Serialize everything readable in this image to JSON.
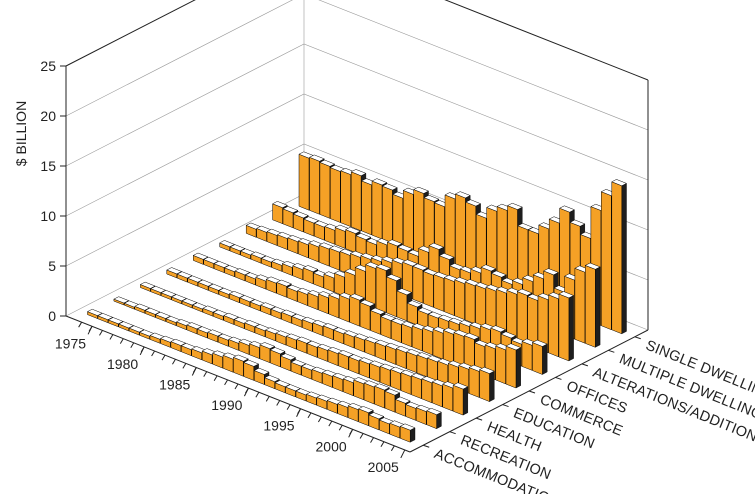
{
  "chart_data": {
    "type": "bar",
    "variant": "3d-bar",
    "title": "",
    "xlabel": "",
    "ylabel": "$ BILLION",
    "ylim": [
      0,
      25
    ],
    "y_ticks": [
      0,
      5,
      10,
      15,
      20,
      25
    ],
    "x_ticks": [
      1975,
      1980,
      1985,
      1990,
      1995,
      2000,
      2005
    ],
    "grid": true,
    "legend": "none",
    "colors": {
      "bar_front": "#f5a126",
      "bar_side": "#1e1e1e",
      "bar_top": "#ffffff"
    },
    "years": [
      1974,
      1975,
      1976,
      1977,
      1978,
      1979,
      1980,
      1981,
      1982,
      1983,
      1984,
      1985,
      1986,
      1987,
      1988,
      1989,
      1990,
      1991,
      1992,
      1993,
      1994,
      1995,
      1996,
      1997,
      1998,
      1999,
      2000,
      2001,
      2002,
      2003,
      2004
    ],
    "series": [
      {
        "name": "ACCOMMODATION",
        "values": [
          0.3,
          0.3,
          0.3,
          0.3,
          0.3,
          0.3,
          0.4,
          0.5,
          0.6,
          0.6,
          0.7,
          0.9,
          1.1,
          1.3,
          1.5,
          1.4,
          1.0,
          0.7,
          0.6,
          0.6,
          0.6,
          0.7,
          0.8,
          0.9,
          1.0,
          1.2,
          1.3,
          1.1,
          1.0,
          1.1,
          1.2
        ]
      },
      {
        "name": "RECREATION",
        "values": [
          0.2,
          0.2,
          0.3,
          0.3,
          0.3,
          0.3,
          0.4,
          0.5,
          0.5,
          0.6,
          0.6,
          0.7,
          0.9,
          1.1,
          1.4,
          1.3,
          1.1,
          0.9,
          0.9,
          1.0,
          1.1,
          1.2,
          1.3,
          1.6,
          1.7,
          1.8,
          1.7,
          1.3,
          1.2,
          1.3,
          1.4
        ]
      },
      {
        "name": "HEALTH",
        "values": [
          0.3,
          0.3,
          0.3,
          0.3,
          0.3,
          0.3,
          0.4,
          0.4,
          0.5,
          0.5,
          0.6,
          0.6,
          0.7,
          0.8,
          0.9,
          1.0,
          1.0,
          1.1,
          1.2,
          1.3,
          1.3,
          1.4,
          1.5,
          1.6,
          1.7,
          1.8,
          1.9,
          2.0,
          2.1,
          2.3,
          2.6
        ]
      },
      {
        "name": "EDUCATION",
        "values": [
          0.4,
          0.4,
          0.4,
          0.4,
          0.4,
          0.4,
          0.5,
          0.5,
          0.5,
          0.6,
          0.6,
          0.7,
          0.7,
          0.8,
          0.9,
          1.0,
          1.0,
          1.1,
          1.2,
          1.3,
          1.4,
          1.5,
          1.6,
          1.7,
          1.8,
          1.9,
          2.0,
          2.2,
          2.4,
          2.6,
          2.8
        ]
      },
      {
        "name": "COMMERCE",
        "values": [
          0.5,
          0.5,
          0.5,
          0.5,
          0.6,
          0.6,
          0.8,
          1.0,
          1.1,
          1.0,
          1.1,
          1.3,
          1.6,
          1.9,
          2.3,
          2.6,
          2.4,
          2.0,
          1.8,
          1.8,
          1.9,
          2.1,
          2.3,
          2.6,
          2.9,
          3.1,
          3.2,
          2.9,
          3.1,
          3.4,
          3.8
        ]
      },
      {
        "name": "OFFICES",
        "values": [
          0.4,
          0.4,
          0.4,
          0.5,
          0.5,
          0.6,
          0.8,
          1.0,
          1.2,
          1.1,
          1.4,
          1.9,
          2.5,
          3.3,
          4.0,
          4.2,
          3.6,
          2.6,
          1.8,
          1.5,
          1.5,
          1.6,
          1.7,
          1.9,
          2.1,
          2.4,
          2.6,
          2.4,
          2.2,
          2.5,
          2.8
        ]
      },
      {
        "name": "ALTERATIONS/ADDITIONS",
        "values": [
          0.8,
          0.9,
          1.0,
          1.1,
          1.2,
          1.3,
          1.5,
          1.7,
          1.8,
          1.9,
          2.1,
          2.3,
          2.5,
          2.8,
          3.1,
          3.3,
          3.3,
          3.2,
          3.3,
          3.4,
          3.6,
          3.8,
          3.9,
          4.1,
          4.3,
          4.6,
          4.9,
          4.8,
          5.3,
          5.8,
          6.3
        ]
      },
      {
        "name": "MULTIPLE DWELLINGS",
        "values": [
          1.6,
          1.5,
          1.4,
          1.3,
          1.3,
          1.4,
          1.7,
          1.9,
          1.7,
          1.6,
          2.0,
          2.3,
          2.2,
          2.1,
          2.9,
          3.6,
          3.0,
          2.4,
          2.5,
          2.9,
          3.5,
          3.3,
          3.0,
          3.4,
          4.1,
          4.8,
          5.6,
          4.3,
          5.9,
          7.1,
          7.8
        ]
      },
      {
        "name": "SINGLE DWELLINGS",
        "values": [
          5.2,
          5.3,
          5.2,
          5.1,
          5.2,
          5.5,
          5.0,
          5.4,
          5.3,
          4.9,
          5.7,
          6.2,
          5.8,
          5.7,
          6.9,
          7.4,
          7.0,
          6.2,
          7.3,
          7.8,
          8.3,
          6.7,
          6.7,
          7.6,
          8.6,
          10.1,
          9.1,
          8.3,
          11.5,
          13.4,
          14.8
        ]
      }
    ]
  }
}
